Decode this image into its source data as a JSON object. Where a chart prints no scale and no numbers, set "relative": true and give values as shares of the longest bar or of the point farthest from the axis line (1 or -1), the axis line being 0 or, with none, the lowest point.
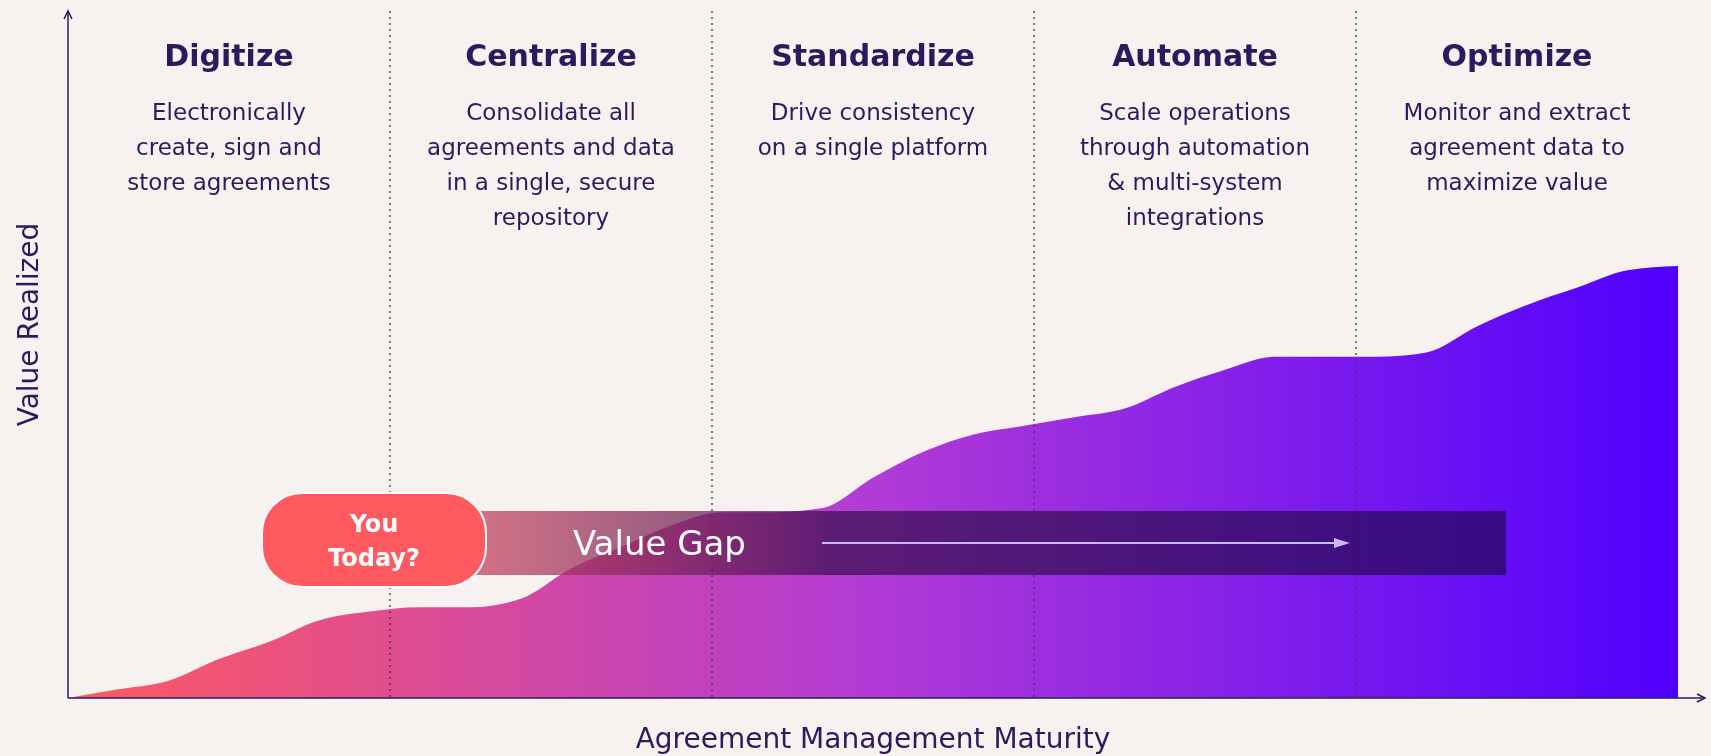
{
  "chart_data": {
    "type": "area",
    "relative": true,
    "xlabel": "Agreement Management Maturity",
    "ylabel": "Value Realized",
    "grid": "x",
    "categories": [
      null,
      null,
      null,
      null,
      null,
      null,
      null,
      null,
      null,
      null,
      null,
      null,
      null,
      null,
      null,
      null,
      null,
      null,
      null,
      null,
      null,
      null,
      null,
      null,
      null,
      null,
      null,
      null,
      null,
      null,
      null,
      null,
      null
    ],
    "series": [
      {
        "color": "#b13bd6",
        "values": [
          0,
          0.02,
          0.04,
          0.09,
          0.13,
          0.18,
          0.2,
          0.21,
          0.21,
          0.23,
          0.3,
          0.35,
          0.4,
          0.43,
          0.43,
          0.44,
          0.51,
          0.57,
          0.61,
          0.63,
          0.65,
          0.67,
          0.72,
          0.76,
          0.79,
          0.79,
          0.79,
          0.8,
          0.86,
          0.91,
          0.95,
          0.99,
          1
        ]
      }
    ],
    "annotations": [
      "Digitize",
      "Electronically\ncreate, sign and\nstore agreements",
      "Centralize",
      "Consolidate all\nagreements and data\nin a single, secure\nrepository",
      "Standardize",
      "Drive consistency\non a single platform",
      "Automate",
      "Scale operations\nthrough automation\n& multi-system\nintegrations",
      "Optimize",
      "Monitor and extract\nagreement data to\nmaximize value",
      "You\nToday?",
      "Value Gap"
    ]
  }
}
